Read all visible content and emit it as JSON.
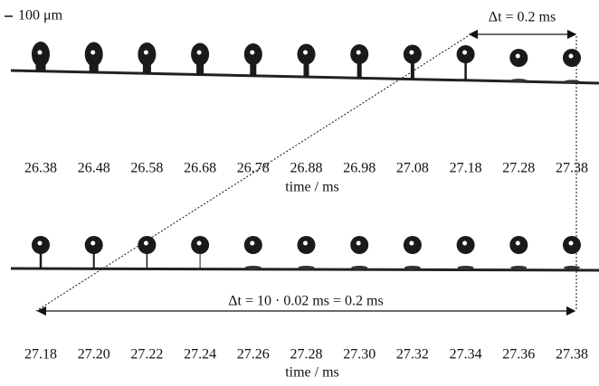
{
  "scale_bar": "100 μm",
  "top_interval": "Δt = 0.2 ms",
  "rows": [
    {
      "times": [
        "26.38",
        "26.48",
        "26.58",
        "26.68",
        "26.78",
        "26.88",
        "26.98",
        "27.08",
        "27.18",
        "27.28",
        "27.38"
      ],
      "axis_label": "time / ms"
    },
    {
      "times": [
        "27.18",
        "27.20",
        "27.22",
        "27.24",
        "27.26",
        "27.28",
        "27.30",
        "27.32",
        "27.34",
        "27.36",
        "27.38"
      ],
      "axis_label": "time / ms"
    }
  ],
  "bottom_interval": "Δt = 10 · 0.02 ms = 0.2 ms"
}
